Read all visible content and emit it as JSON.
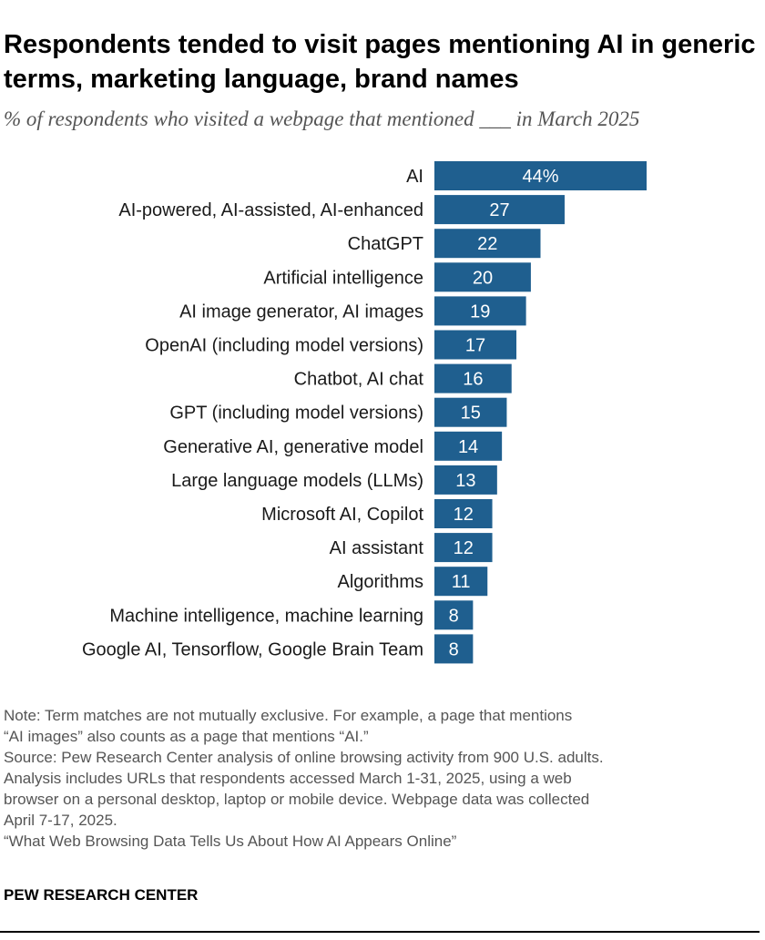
{
  "title": "Respondents tended to visit pages mentioning AI in generic terms, marketing language, brand names",
  "subtitle": "% of respondents who visited a webpage that mentioned ___ in March 2025",
  "chart_data": {
    "type": "bar",
    "orientation": "horizontal",
    "categories": [
      "AI",
      "AI-powered, AI-assisted, AI-enhanced",
      "ChatGPT",
      "Artificial intelligence",
      "AI image generator, AI images",
      "OpenAI (including model versions)",
      "Chatbot, AI chat",
      "GPT (including model versions)",
      "Generative AI, generative model",
      "Large language models (LLMs)",
      "Microsoft AI, Copilot",
      "AI assistant",
      "Algorithms",
      "Machine intelligence, machine learning",
      "Google AI, Tensorflow, Google Brain Team"
    ],
    "values": [
      44,
      27,
      22,
      20,
      19,
      17,
      16,
      15,
      14,
      13,
      12,
      12,
      11,
      8,
      8
    ],
    "value_labels": [
      "44%",
      "27",
      "22",
      "20",
      "19",
      "17",
      "16",
      "15",
      "14",
      "13",
      "12",
      "12",
      "11",
      "8",
      "8"
    ],
    "bar_color": "#1f5f8f",
    "xlim": [
      0,
      44
    ],
    "grid": false,
    "legend": "none"
  },
  "notes": [
    "Note: Term matches are not mutually exclusive. For example, a page that mentions",
    "“AI images” also counts as a page that mentions “AI.”",
    "Source: Pew Research Center analysis of online browsing activity from 900 U.S. adults.",
    "Analysis includes URLs that respondents accessed March 1-31, 2025, using a web",
    "browser on a personal desktop, laptop or mobile device. Webpage data was collected",
    "April 7-17, 2025.",
    "“What Web Browsing Data Tells Us About How AI Appears Online”"
  ],
  "org": "PEW RESEARCH CENTER"
}
